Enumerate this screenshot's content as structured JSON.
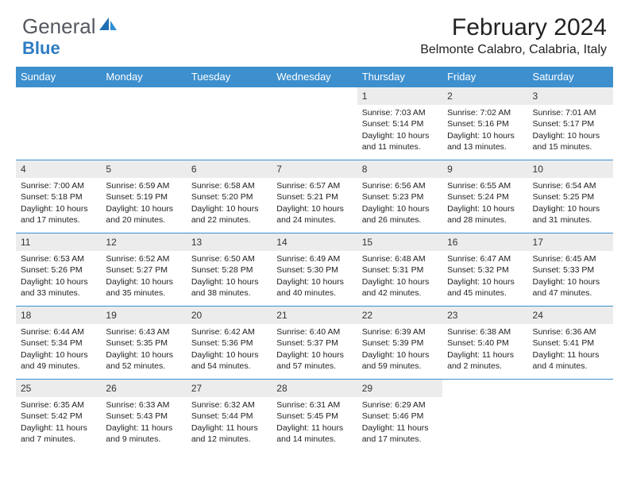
{
  "brand": {
    "part1": "General",
    "part2": "Blue"
  },
  "title": "February 2024",
  "location": "Belmonte Calabro, Calabria, Italy",
  "colors": {
    "header_bg": "#3d8fce",
    "header_text": "#ffffff",
    "daynum_bg": "#ececec",
    "rule": "#3d8fce",
    "logo_gray": "#555860",
    "logo_blue": "#2d7cc3"
  },
  "weekdays": [
    "Sunday",
    "Monday",
    "Tuesday",
    "Wednesday",
    "Thursday",
    "Friday",
    "Saturday"
  ],
  "weeks": [
    [
      {
        "day": "",
        "lines": []
      },
      {
        "day": "",
        "lines": []
      },
      {
        "day": "",
        "lines": []
      },
      {
        "day": "",
        "lines": []
      },
      {
        "day": "1",
        "lines": [
          "Sunrise: 7:03 AM",
          "Sunset: 5:14 PM",
          "Daylight: 10 hours",
          "and 11 minutes."
        ]
      },
      {
        "day": "2",
        "lines": [
          "Sunrise: 7:02 AM",
          "Sunset: 5:16 PM",
          "Daylight: 10 hours",
          "and 13 minutes."
        ]
      },
      {
        "day": "3",
        "lines": [
          "Sunrise: 7:01 AM",
          "Sunset: 5:17 PM",
          "Daylight: 10 hours",
          "and 15 minutes."
        ]
      }
    ],
    [
      {
        "day": "4",
        "lines": [
          "Sunrise: 7:00 AM",
          "Sunset: 5:18 PM",
          "Daylight: 10 hours",
          "and 17 minutes."
        ]
      },
      {
        "day": "5",
        "lines": [
          "Sunrise: 6:59 AM",
          "Sunset: 5:19 PM",
          "Daylight: 10 hours",
          "and 20 minutes."
        ]
      },
      {
        "day": "6",
        "lines": [
          "Sunrise: 6:58 AM",
          "Sunset: 5:20 PM",
          "Daylight: 10 hours",
          "and 22 minutes."
        ]
      },
      {
        "day": "7",
        "lines": [
          "Sunrise: 6:57 AM",
          "Sunset: 5:21 PM",
          "Daylight: 10 hours",
          "and 24 minutes."
        ]
      },
      {
        "day": "8",
        "lines": [
          "Sunrise: 6:56 AM",
          "Sunset: 5:23 PM",
          "Daylight: 10 hours",
          "and 26 minutes."
        ]
      },
      {
        "day": "9",
        "lines": [
          "Sunrise: 6:55 AM",
          "Sunset: 5:24 PM",
          "Daylight: 10 hours",
          "and 28 minutes."
        ]
      },
      {
        "day": "10",
        "lines": [
          "Sunrise: 6:54 AM",
          "Sunset: 5:25 PM",
          "Daylight: 10 hours",
          "and 31 minutes."
        ]
      }
    ],
    [
      {
        "day": "11",
        "lines": [
          "Sunrise: 6:53 AM",
          "Sunset: 5:26 PM",
          "Daylight: 10 hours",
          "and 33 minutes."
        ]
      },
      {
        "day": "12",
        "lines": [
          "Sunrise: 6:52 AM",
          "Sunset: 5:27 PM",
          "Daylight: 10 hours",
          "and 35 minutes."
        ]
      },
      {
        "day": "13",
        "lines": [
          "Sunrise: 6:50 AM",
          "Sunset: 5:28 PM",
          "Daylight: 10 hours",
          "and 38 minutes."
        ]
      },
      {
        "day": "14",
        "lines": [
          "Sunrise: 6:49 AM",
          "Sunset: 5:30 PM",
          "Daylight: 10 hours",
          "and 40 minutes."
        ]
      },
      {
        "day": "15",
        "lines": [
          "Sunrise: 6:48 AM",
          "Sunset: 5:31 PM",
          "Daylight: 10 hours",
          "and 42 minutes."
        ]
      },
      {
        "day": "16",
        "lines": [
          "Sunrise: 6:47 AM",
          "Sunset: 5:32 PM",
          "Daylight: 10 hours",
          "and 45 minutes."
        ]
      },
      {
        "day": "17",
        "lines": [
          "Sunrise: 6:45 AM",
          "Sunset: 5:33 PM",
          "Daylight: 10 hours",
          "and 47 minutes."
        ]
      }
    ],
    [
      {
        "day": "18",
        "lines": [
          "Sunrise: 6:44 AM",
          "Sunset: 5:34 PM",
          "Daylight: 10 hours",
          "and 49 minutes."
        ]
      },
      {
        "day": "19",
        "lines": [
          "Sunrise: 6:43 AM",
          "Sunset: 5:35 PM",
          "Daylight: 10 hours",
          "and 52 minutes."
        ]
      },
      {
        "day": "20",
        "lines": [
          "Sunrise: 6:42 AM",
          "Sunset: 5:36 PM",
          "Daylight: 10 hours",
          "and 54 minutes."
        ]
      },
      {
        "day": "21",
        "lines": [
          "Sunrise: 6:40 AM",
          "Sunset: 5:37 PM",
          "Daylight: 10 hours",
          "and 57 minutes."
        ]
      },
      {
        "day": "22",
        "lines": [
          "Sunrise: 6:39 AM",
          "Sunset: 5:39 PM",
          "Daylight: 10 hours",
          "and 59 minutes."
        ]
      },
      {
        "day": "23",
        "lines": [
          "Sunrise: 6:38 AM",
          "Sunset: 5:40 PM",
          "Daylight: 11 hours",
          "and 2 minutes."
        ]
      },
      {
        "day": "24",
        "lines": [
          "Sunrise: 6:36 AM",
          "Sunset: 5:41 PM",
          "Daylight: 11 hours",
          "and 4 minutes."
        ]
      }
    ],
    [
      {
        "day": "25",
        "lines": [
          "Sunrise: 6:35 AM",
          "Sunset: 5:42 PM",
          "Daylight: 11 hours",
          "and 7 minutes."
        ]
      },
      {
        "day": "26",
        "lines": [
          "Sunrise: 6:33 AM",
          "Sunset: 5:43 PM",
          "Daylight: 11 hours",
          "and 9 minutes."
        ]
      },
      {
        "day": "27",
        "lines": [
          "Sunrise: 6:32 AM",
          "Sunset: 5:44 PM",
          "Daylight: 11 hours",
          "and 12 minutes."
        ]
      },
      {
        "day": "28",
        "lines": [
          "Sunrise: 6:31 AM",
          "Sunset: 5:45 PM",
          "Daylight: 11 hours",
          "and 14 minutes."
        ]
      },
      {
        "day": "29",
        "lines": [
          "Sunrise: 6:29 AM",
          "Sunset: 5:46 PM",
          "Daylight: 11 hours",
          "and 17 minutes."
        ]
      },
      {
        "day": "",
        "lines": []
      },
      {
        "day": "",
        "lines": []
      }
    ]
  ]
}
